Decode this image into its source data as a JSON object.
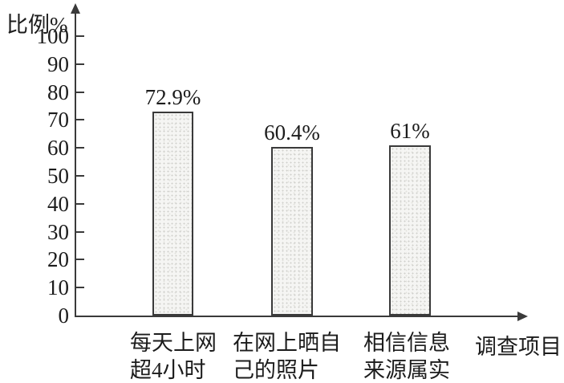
{
  "chart_data": {
    "type": "bar",
    "title": "",
    "ylabel": "比例%",
    "xlabel": "调查项目",
    "categories": [
      "每天上网超4小时",
      "在网上晒自己的照片",
      "相信信息来源属实"
    ],
    "category_lines": [
      [
        "每天上网",
        "超4小时"
      ],
      [
        "在网上晒自",
        "己的照片"
      ],
      [
        "相信信息",
        "来源属实"
      ]
    ],
    "values": [
      72.9,
      60.4,
      61
    ],
    "value_labels": [
      "72.9%",
      "60.4%",
      "61%"
    ],
    "ylim": [
      0,
      100
    ],
    "yticks": [
      0,
      10,
      20,
      30,
      40,
      50,
      60,
      70,
      80,
      90,
      100
    ],
    "grid": false,
    "legend": "none",
    "colors": {
      "background": "#ffffff",
      "axis": "#3a3a3a",
      "text": "#1c1c1c",
      "bar_fill": "#f5f5f3",
      "bar_speckle": "#cfcfcb",
      "bar_border": "#3a3a3a"
    }
  }
}
